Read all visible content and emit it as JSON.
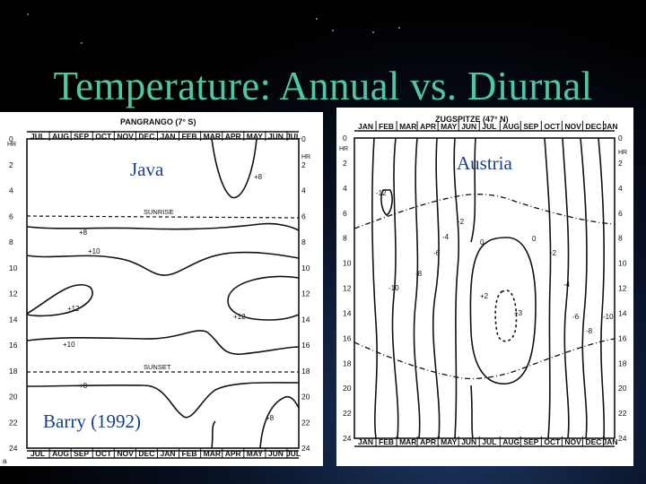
{
  "slide": {
    "title": "Temperature: Annual vs. Diurnal",
    "citation": "Barry (1992)"
  },
  "left_chart": {
    "station": "PANGRANGO (7° S)",
    "region_label": "Java",
    "sublabel": "a",
    "months_top": [
      "JUL",
      "AUG",
      "SEP",
      "OCT",
      "NOV",
      "DEC",
      "JAN",
      "FEB",
      "MAR",
      "APR",
      "MAY",
      "JUN",
      "JUL"
    ],
    "months_bottom": [
      "JUL",
      "AUG",
      "SEP",
      "OCT",
      "NOV",
      "DEC",
      "JAN",
      "FEB",
      "MAR",
      "APR",
      "MAY",
      "JUN",
      "JUL"
    ],
    "hour_ticks": [
      "0",
      "2",
      "4",
      "6",
      "8",
      "10",
      "12",
      "14",
      "16",
      "18",
      "20",
      "22",
      "24"
    ],
    "hr_label": "HR",
    "sunrise_label": "SUNRISE",
    "sunset_label": "SUNSET",
    "isotherm_labels": [
      "+8",
      "+8",
      "+10",
      "+12",
      "+12",
      "+10",
      "+8",
      "+8"
    ]
  },
  "right_chart": {
    "station": "ZUGSPITZE (47° N)",
    "region_label": "Austria",
    "months_top": [
      "JAN",
      "FEB",
      "MAR",
      "APR",
      "MAY",
      "JUN",
      "JUL",
      "AUG",
      "SEP",
      "OCT",
      "NOV",
      "DEC",
      "JAN"
    ],
    "months_bottom": [
      "JAN",
      "FEB",
      "MAR",
      "APR",
      "MAY",
      "JUN",
      "JUL",
      "AUG",
      "SEP",
      "OCT",
      "NOV",
      "DEC",
      "JAN"
    ],
    "hour_ticks": [
      "0",
      "2",
      "4",
      "6",
      "8",
      "10",
      "12",
      "14",
      "16",
      "18",
      "20",
      "22",
      "24"
    ],
    "hr_label": "HR",
    "isotherm_labels": [
      "-12",
      "-2",
      "-4",
      "0",
      "0",
      "-2",
      "-6",
      "-8",
      "-10",
      "+2",
      "+3",
      "-4",
      "-6",
      "-8",
      "-10"
    ]
  },
  "colors": {
    "title": "#4fc7a2",
    "overlay_text": "#1a3f8a",
    "ink": "#111111"
  }
}
